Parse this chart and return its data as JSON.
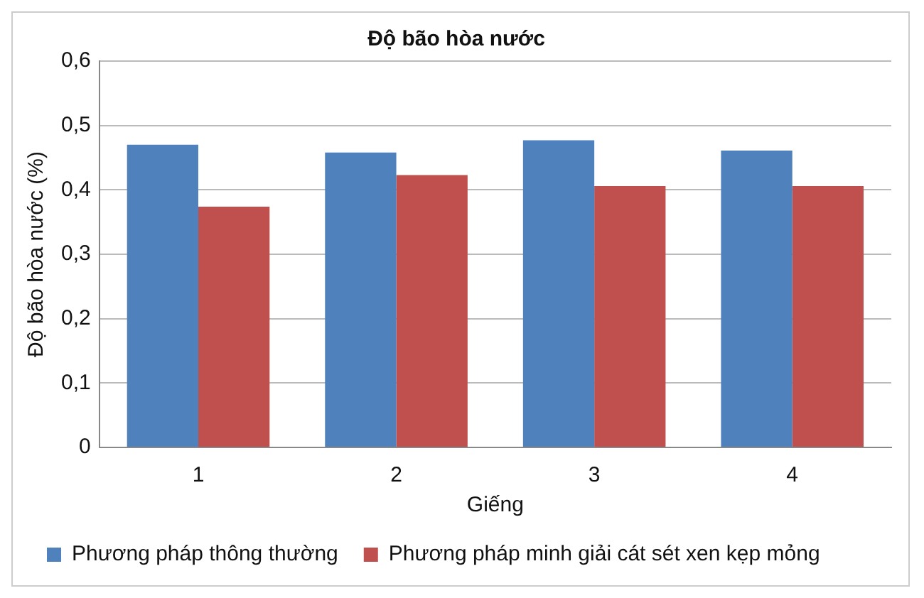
{
  "chart_data": {
    "type": "bar",
    "title": "Độ bão hòa nước",
    "xlabel": "Giếng",
    "ylabel": "Độ bão hòa nước (%)",
    "categories": [
      "1",
      "2",
      "3",
      "4"
    ],
    "series": [
      {
        "name": "Phương pháp thông thường",
        "color": "#4f81bd",
        "values": [
          0.47,
          0.458,
          0.477,
          0.461
        ]
      },
      {
        "name": "Phương pháp minh giải cát sét xen kẹp mỏng",
        "color": "#c0504d",
        "values": [
          0.374,
          0.423,
          0.406,
          0.406
        ]
      }
    ],
    "ylim": [
      0,
      0.6
    ],
    "yticks": [
      {
        "value": 0,
        "label": "0"
      },
      {
        "value": 0.1,
        "label": "0,1"
      },
      {
        "value": 0.2,
        "label": "0,2"
      },
      {
        "value": 0.3,
        "label": "0,3"
      },
      {
        "value": 0.4,
        "label": "0,4"
      },
      {
        "value": 0.5,
        "label": "0,5"
      },
      {
        "value": 0.6,
        "label": "0,6"
      }
    ],
    "grid": "y",
    "legend": "bottom"
  }
}
